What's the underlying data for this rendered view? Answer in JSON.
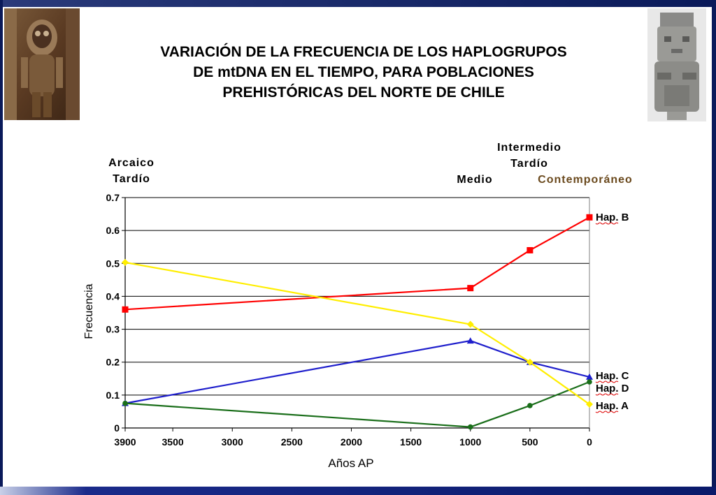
{
  "slide": {
    "title_lines": [
      "VARIACIÓN DE LA FRECUENCIA DE LOS HAPLOGRUPOS",
      "DE mtDNA EN EL TIEMPO, PARA POBLACIONES",
      "PREHISTÓRICAS DEL NORTE DE CHILE"
    ]
  },
  "periods": {
    "arcaico_1": "Arcaico",
    "arcaico_2": "Tardío",
    "intermedio_1": "Intermedio",
    "intermedio_2": "Tardío",
    "medio": "Medio",
    "contemporaneo": "Contemporáneo",
    "contemporaneo_color": "#6b4a1e"
  },
  "chart_data": {
    "type": "line",
    "xlabel": "Años AP",
    "ylabel": "Frecuencia",
    "x": [
      3900,
      1000,
      500,
      0
    ],
    "xlim": [
      3900,
      0
    ],
    "ylim": [
      0,
      0.7
    ],
    "xticks": [
      "3900",
      "3500",
      "3000",
      "2500",
      "2000",
      "1500",
      "1000",
      "500",
      "0"
    ],
    "xtick_values": [
      3900,
      3500,
      3000,
      2500,
      2000,
      1500,
      1000,
      500,
      0
    ],
    "yticks": [
      "0",
      "0.1",
      "0.2",
      "0.3",
      "0.4",
      "0.5",
      "0.6",
      "0.7"
    ],
    "ytick_values": [
      0,
      0.1,
      0.2,
      0.3,
      0.4,
      0.5,
      0.6,
      0.7
    ],
    "grid": true,
    "series": [
      {
        "name": "Hap. B",
        "color": "#ff0000",
        "marker": "square",
        "values": [
          0.36,
          0.425,
          0.54,
          0.64
        ]
      },
      {
        "name": "Hap. C",
        "color": "#1f1fcc",
        "marker": "triangle",
        "values": [
          0.075,
          0.265,
          0.2,
          0.155
        ]
      },
      {
        "name": "Hap. D",
        "color": "#1a6e1a",
        "marker": "circle",
        "values": [
          0.075,
          0.003,
          0.068,
          0.14
        ]
      },
      {
        "name": "Hap. A",
        "color": "#ffee00",
        "marker": "diamond",
        "values": [
          0.503,
          0.315,
          0.2,
          0.072
        ]
      }
    ]
  }
}
